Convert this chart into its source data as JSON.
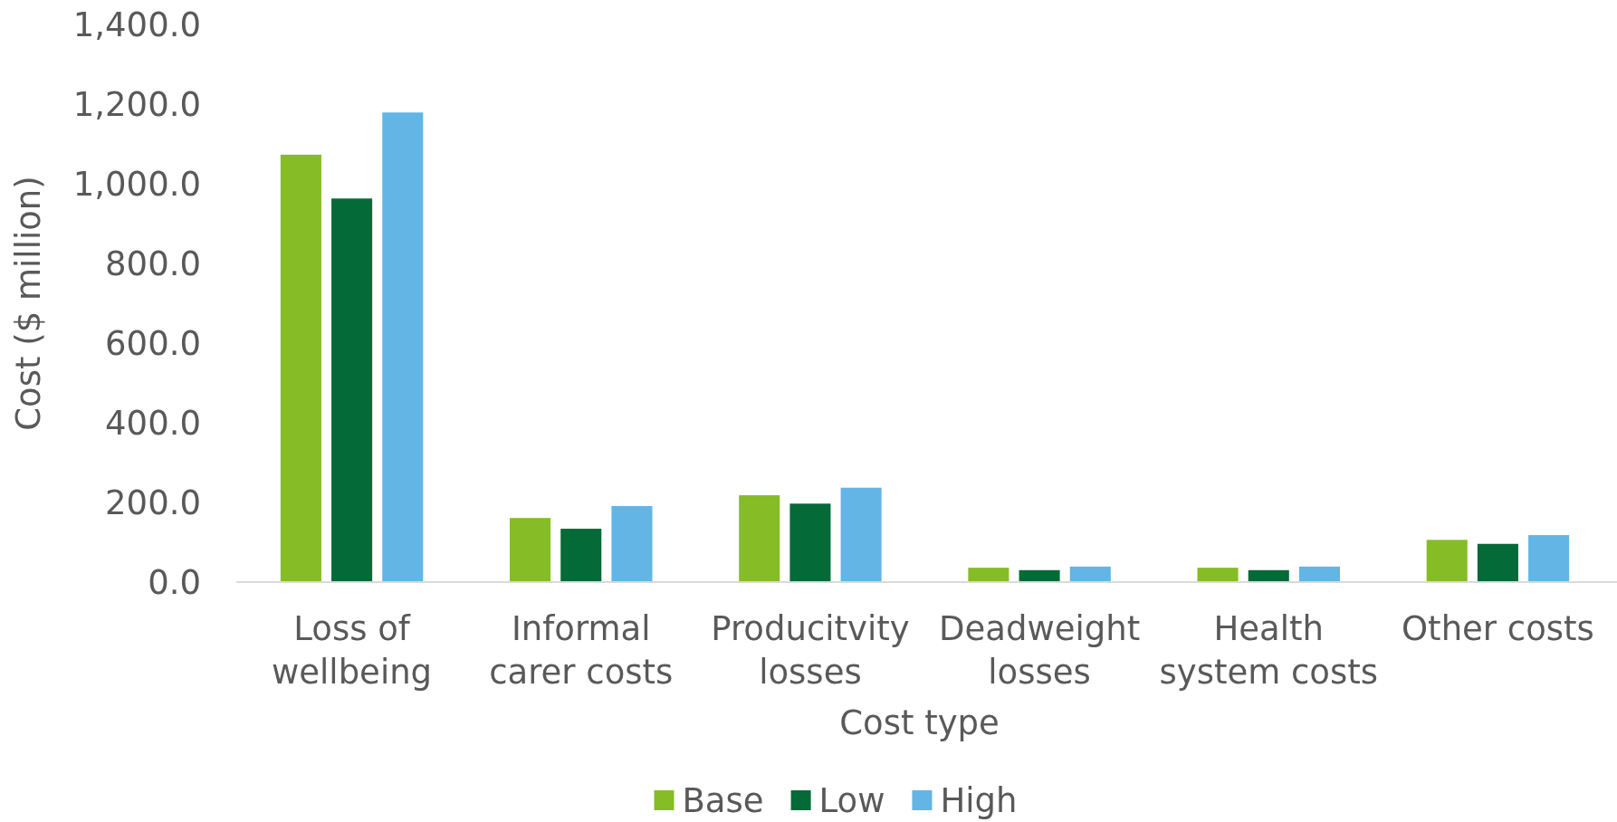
{
  "chart_data": {
    "type": "bar",
    "xlabel": "Cost type",
    "ylabel": "Cost ($ million)",
    "categories": [
      "Loss of wellbeing",
      "Informal carer costs",
      "Producitvity losses",
      "Deadweight losses",
      "Health system costs",
      "Other costs"
    ],
    "series": [
      {
        "name": "Base",
        "color": "#86bc25",
        "values": [
          1073,
          161,
          218,
          36,
          36,
          106
        ]
      },
      {
        "name": "Low",
        "color": "#046a38",
        "values": [
          963,
          134,
          197,
          30,
          30,
          96
        ]
      },
      {
        "name": "High",
        "color": "#62b5e5",
        "values": [
          1179,
          191,
          237,
          39,
          39,
          118
        ]
      }
    ],
    "ylim": [
      0,
      1400
    ],
    "yticks": [
      {
        "value": 0,
        "label": "0.0"
      },
      {
        "value": 200,
        "label": "200.0"
      },
      {
        "value": 400,
        "label": "400.0"
      },
      {
        "value": 600,
        "label": "600.0"
      },
      {
        "value": 800,
        "label": "800.0"
      },
      {
        "value": 1000,
        "label": "1,000.0"
      },
      {
        "value": 1200,
        "label": "1,200.0"
      },
      {
        "value": 1400,
        "label": "1,400.0"
      }
    ],
    "legend": "bottom"
  }
}
